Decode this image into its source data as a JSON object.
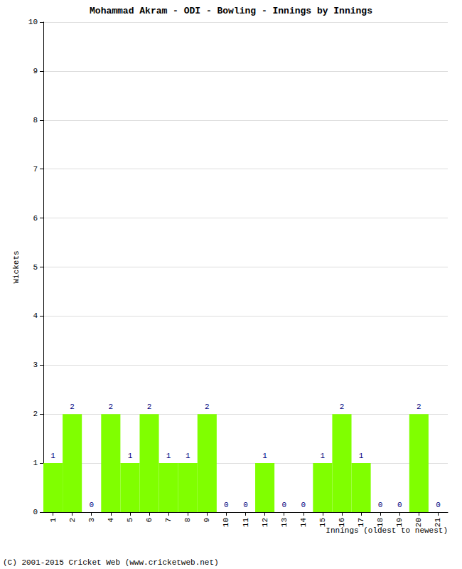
{
  "chart_data": {
    "type": "bar",
    "title": "Mohammad Akram - ODI - Bowling - Innings by Innings",
    "x_label": "Innings (oldest to newest)",
    "y_label": "Wickets",
    "annotations": [
      "(C) 2001-2015 Cricket Web (www.cricketweb.net)"
    ],
    "categories": [
      1,
      2,
      3,
      4,
      5,
      6,
      7,
      8,
      9,
      10,
      11,
      12,
      13,
      14,
      15,
      16,
      17,
      18,
      19,
      20,
      21
    ],
    "values": [
      1,
      2,
      0,
      2,
      1,
      2,
      1,
      1,
      2,
      0,
      0,
      1,
      0,
      0,
      1,
      2,
      1,
      0,
      0,
      2,
      0
    ],
    "color": "#80ff00",
    "ylim": [
      0,
      10
    ],
    "yticks": [
      0,
      1,
      2,
      3,
      4,
      5,
      6,
      7,
      8,
      9,
      10
    ],
    "grid": true,
    "data_labels": true
  }
}
